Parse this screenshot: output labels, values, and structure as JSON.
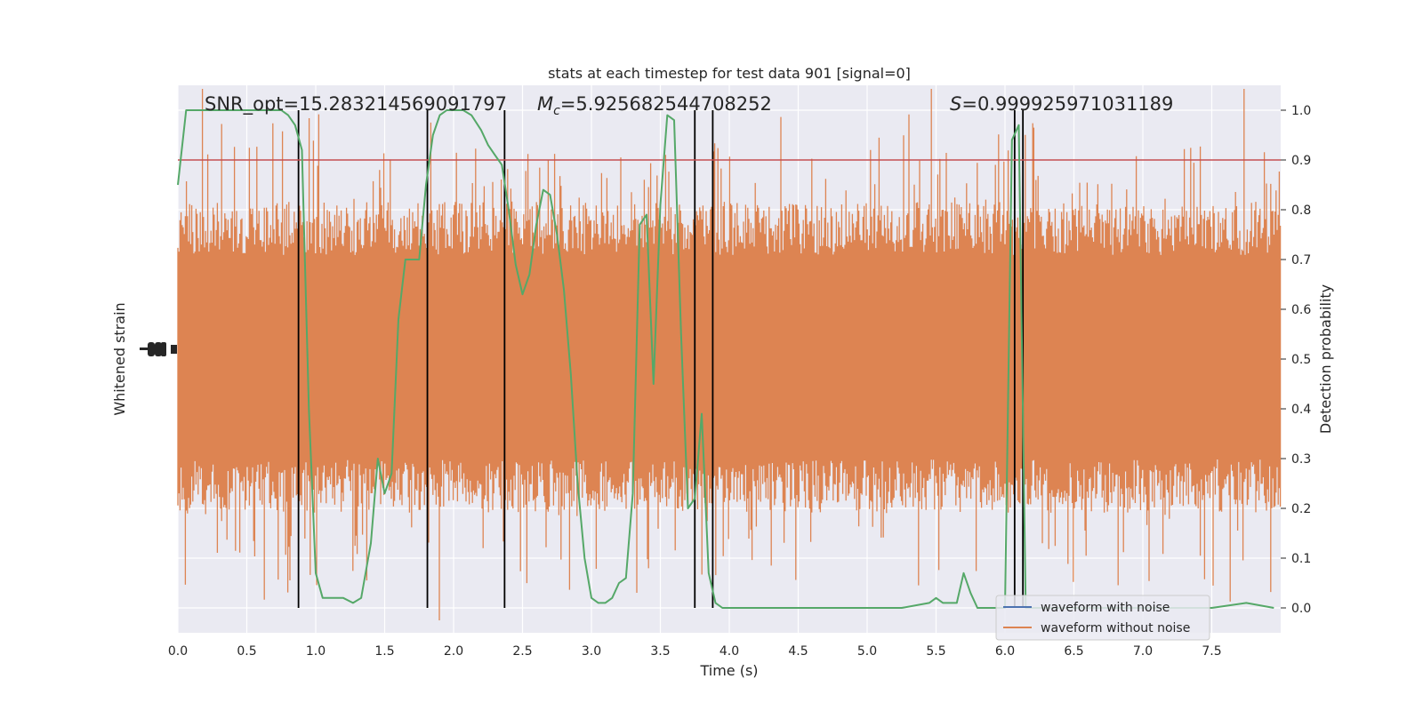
{
  "chart_data": {
    "type": "line",
    "title": "stats at each timestep for test data 901 [signal=0]",
    "xlabel": "Time (s)",
    "ylabel_left": "Whitened strain",
    "ylabel_right": "Detection probability",
    "xlim": [
      0,
      8
    ],
    "ylim_right": [
      -0.05,
      1.05
    ],
    "x_ticks": [
      "0.0",
      "0.5",
      "1.0",
      "1.5",
      "2.0",
      "2.5",
      "3.0",
      "3.5",
      "4.0",
      "4.5",
      "5.0",
      "5.5",
      "6.0",
      "6.5",
      "7.0",
      "7.5"
    ],
    "y_ticks_right": [
      "0.0",
      "0.1",
      "0.2",
      "0.3",
      "0.4",
      "0.5",
      "0.6",
      "0.7",
      "0.8",
      "0.9",
      "1.0"
    ],
    "grid": true,
    "legend_position": "lower-right",
    "annotations": {
      "snr": "SNR_opt=15.283214569091797",
      "mc": "=5.925682544708252",
      "mc_symbol": "M",
      "mc_sub": "c",
      "s": "=0.999925971031189",
      "s_symbol": "S"
    },
    "threshold": 0.9,
    "trigger_times": [
      0.875,
      1.81,
      2.37,
      3.75,
      3.88,
      6.07,
      6.13
    ],
    "series": [
      {
        "name": "waveform with noise",
        "role": "strain",
        "color": "#4c72b0",
        "values": []
      },
      {
        "name": "waveform without noise",
        "role": "strain",
        "color": "#dd8452",
        "values": []
      },
      {
        "role": "detection-probability",
        "color": "#55a868",
        "x": [
          0,
          0.06,
          0.12,
          0.2,
          0.3,
          0.4,
          0.5,
          0.6,
          0.7,
          0.75,
          0.8,
          0.85,
          0.9,
          0.95,
          1.0,
          1.05,
          1.1,
          1.2,
          1.27,
          1.33,
          1.4,
          1.45,
          1.5,
          1.55,
          1.6,
          1.65,
          1.7,
          1.75,
          1.8,
          1.85,
          1.9,
          1.95,
          2.0,
          2.07,
          2.13,
          2.2,
          2.25,
          2.3,
          2.35,
          2.4,
          2.45,
          2.5,
          2.55,
          2.6,
          2.65,
          2.7,
          2.75,
          2.8,
          2.85,
          2.9,
          2.95,
          3.0,
          3.05,
          3.1,
          3.15,
          3.2,
          3.25,
          3.3,
          3.35,
          3.4,
          3.45,
          3.5,
          3.55,
          3.6,
          3.65,
          3.7,
          3.75,
          3.8,
          3.85,
          3.9,
          3.95,
          4.0,
          4.05,
          4.1,
          4.15,
          4.2,
          4.25,
          4.3,
          4.5,
          4.75,
          5.0,
          5.25,
          5.45,
          5.5,
          5.55,
          5.6,
          5.65,
          5.7,
          5.75,
          5.8,
          5.85,
          5.9,
          5.95,
          6.0,
          6.05,
          6.1,
          6.15,
          6.2,
          6.25,
          6.3,
          6.5,
          7.0,
          7.5,
          7.75,
          7.95
        ],
        "values": [
          0.85,
          1.0,
          1.0,
          1.0,
          1.0,
          1.0,
          1.0,
          1.0,
          1.0,
          1.0,
          0.99,
          0.97,
          0.92,
          0.4,
          0.07,
          0.02,
          0.02,
          0.02,
          0.01,
          0.02,
          0.13,
          0.3,
          0.23,
          0.27,
          0.58,
          0.7,
          0.7,
          0.7,
          0.85,
          0.95,
          0.99,
          1.0,
          1.0,
          1.0,
          0.99,
          0.96,
          0.93,
          0.91,
          0.89,
          0.8,
          0.69,
          0.63,
          0.67,
          0.77,
          0.84,
          0.83,
          0.75,
          0.64,
          0.47,
          0.25,
          0.1,
          0.02,
          0.01,
          0.01,
          0.02,
          0.05,
          0.06,
          0.23,
          0.77,
          0.79,
          0.45,
          0.81,
          0.99,
          0.98,
          0.55,
          0.2,
          0.22,
          0.39,
          0.07,
          0.01,
          0.0,
          0.0,
          0.0,
          0.0,
          0.0,
          0.0,
          0.0,
          0.0,
          0.0,
          0.0,
          0.0,
          0.0,
          0.01,
          0.02,
          0.01,
          0.01,
          0.01,
          0.07,
          0.03,
          0.0,
          0.0,
          0.0,
          0.0,
          0.0,
          0.94,
          0.97,
          0.0,
          0.0,
          0.0,
          0.0,
          0.0,
          0.0,
          0.0,
          0.01,
          0.0
        ]
      }
    ]
  }
}
